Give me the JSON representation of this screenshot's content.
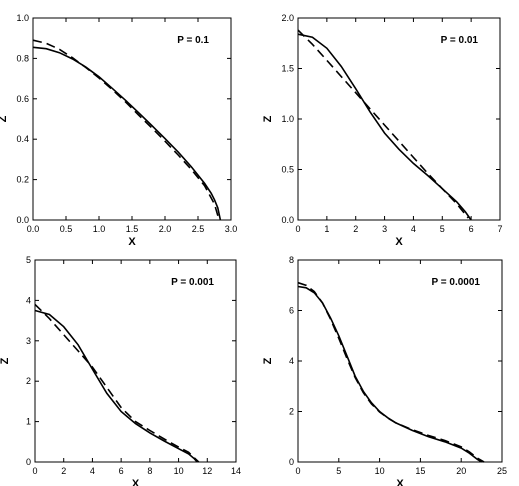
{
  "chart_data": [
    {
      "type": "line",
      "annotation": "P = 0.1",
      "xlabel": "X",
      "ylabel": "Z",
      "xlim": [
        0,
        3.0
      ],
      "ylim": [
        0,
        1.0
      ],
      "xticks": [
        "0.0",
        "0.5",
        "1.0",
        "1.5",
        "2.0",
        "2.5",
        "3.0"
      ],
      "yticks": [
        "0.0",
        "0.2",
        "0.4",
        "0.6",
        "0.8",
        "1.0"
      ],
      "series": [
        {
          "style": "solid",
          "x": [
            0,
            0.2,
            0.4,
            0.6,
            0.8,
            1.0,
            1.2,
            1.4,
            1.6,
            1.8,
            2.0,
            2.2,
            2.4,
            2.6,
            2.7,
            2.75,
            2.8,
            2.84
          ],
          "y": [
            0.855,
            0.848,
            0.828,
            0.797,
            0.757,
            0.709,
            0.652,
            0.593,
            0.531,
            0.468,
            0.403,
            0.336,
            0.263,
            0.181,
            0.132,
            0.1,
            0.06,
            0.0
          ]
        },
        {
          "style": "dashed",
          "x": [
            0,
            0.2,
            0.4,
            0.6,
            0.8,
            1.0,
            1.2,
            1.4,
            1.6,
            1.8,
            2.0,
            2.2,
            2.4,
            2.6,
            2.75,
            2.82
          ],
          "y": [
            0.89,
            0.875,
            0.845,
            0.803,
            0.755,
            0.703,
            0.646,
            0.585,
            0.52,
            0.456,
            0.39,
            0.322,
            0.25,
            0.17,
            0.078,
            0.0
          ]
        }
      ]
    },
    {
      "type": "line",
      "annotation": "P = 0.01",
      "xlabel": "X",
      "ylabel": "Z",
      "xlim": [
        0,
        7
      ],
      "ylim": [
        0,
        2.0
      ],
      "xticks": [
        "0",
        "1",
        "2",
        "3",
        "4",
        "5",
        "6",
        "7"
      ],
      "yticks": [
        "0.0",
        "0.5",
        "1.0",
        "1.5",
        "2.0"
      ],
      "series": [
        {
          "style": "solid",
          "x": [
            0,
            0.5,
            1.0,
            1.5,
            2.0,
            2.5,
            3.0,
            3.5,
            4.0,
            4.5,
            5.0,
            5.5,
            5.8,
            6.0
          ],
          "y": [
            1.84,
            1.81,
            1.7,
            1.52,
            1.3,
            1.07,
            0.86,
            0.7,
            0.56,
            0.44,
            0.31,
            0.18,
            0.08,
            0.0
          ]
        },
        {
          "style": "dashed",
          "x": [
            0,
            0.5,
            1.0,
            1.5,
            2.0,
            2.5,
            3.0,
            3.5,
            4.0,
            4.5,
            5.0,
            5.5,
            5.9
          ],
          "y": [
            1.88,
            1.74,
            1.58,
            1.42,
            1.26,
            1.1,
            0.94,
            0.78,
            0.62,
            0.46,
            0.31,
            0.16,
            0.02
          ]
        }
      ]
    },
    {
      "type": "line",
      "annotation": "P = 0.001",
      "xlabel": "X",
      "ylabel": "Z",
      "xlim": [
        0,
        14
      ],
      "ylim": [
        0,
        5
      ],
      "xticks": [
        "0",
        "2",
        "4",
        "6",
        "8",
        "10",
        "12",
        "14"
      ],
      "yticks": [
        "0",
        "1",
        "2",
        "3",
        "4",
        "5"
      ],
      "series": [
        {
          "style": "solid",
          "x": [
            0,
            1,
            2,
            3,
            4,
            5,
            6,
            7,
            8,
            9,
            10,
            10.7,
            11.1,
            11.3
          ],
          "y": [
            3.75,
            3.65,
            3.35,
            2.9,
            2.3,
            1.7,
            1.25,
            0.95,
            0.72,
            0.52,
            0.33,
            0.2,
            0.08,
            0.0
          ]
        },
        {
          "style": "dashed",
          "x": [
            0,
            1,
            2,
            3,
            4,
            5,
            6,
            7,
            8,
            9,
            10,
            10.7,
            11.1,
            11.4
          ],
          "y": [
            3.9,
            3.55,
            3.15,
            2.75,
            2.35,
            1.85,
            1.35,
            1.0,
            0.78,
            0.57,
            0.37,
            0.24,
            0.1,
            0.0
          ]
        }
      ]
    },
    {
      "type": "line",
      "annotation": "P = 0.0001",
      "xlabel": "X",
      "ylabel": "Z",
      "xlim": [
        0,
        25
      ],
      "ylim": [
        0,
        8
      ],
      "xticks": [
        "0",
        "5",
        "10",
        "15",
        "20",
        "25"
      ],
      "yticks": [
        "0",
        "2",
        "4",
        "6",
        "8"
      ],
      "series": [
        {
          "style": "solid",
          "x": [
            0,
            1,
            2,
            3,
            4,
            5,
            6,
            7,
            8,
            9,
            10,
            11,
            12,
            14,
            16,
            18,
            20,
            21,
            22,
            22.5
          ],
          "y": [
            6.95,
            6.9,
            6.7,
            6.3,
            5.7,
            5.0,
            4.2,
            3.4,
            2.8,
            2.35,
            2.0,
            1.75,
            1.55,
            1.25,
            1.0,
            0.8,
            0.55,
            0.35,
            0.1,
            0.0
          ]
        },
        {
          "style": "dashed",
          "x": [
            0,
            1,
            2,
            3,
            4,
            5,
            6,
            7,
            8,
            9,
            10,
            11,
            12,
            14,
            16,
            18,
            20,
            21,
            22,
            22.8
          ],
          "y": [
            7.1,
            7.0,
            6.75,
            6.3,
            5.65,
            4.9,
            4.1,
            3.35,
            2.75,
            2.3,
            1.98,
            1.74,
            1.55,
            1.28,
            1.05,
            0.85,
            0.6,
            0.4,
            0.15,
            0.0
          ]
        }
      ]
    }
  ]
}
